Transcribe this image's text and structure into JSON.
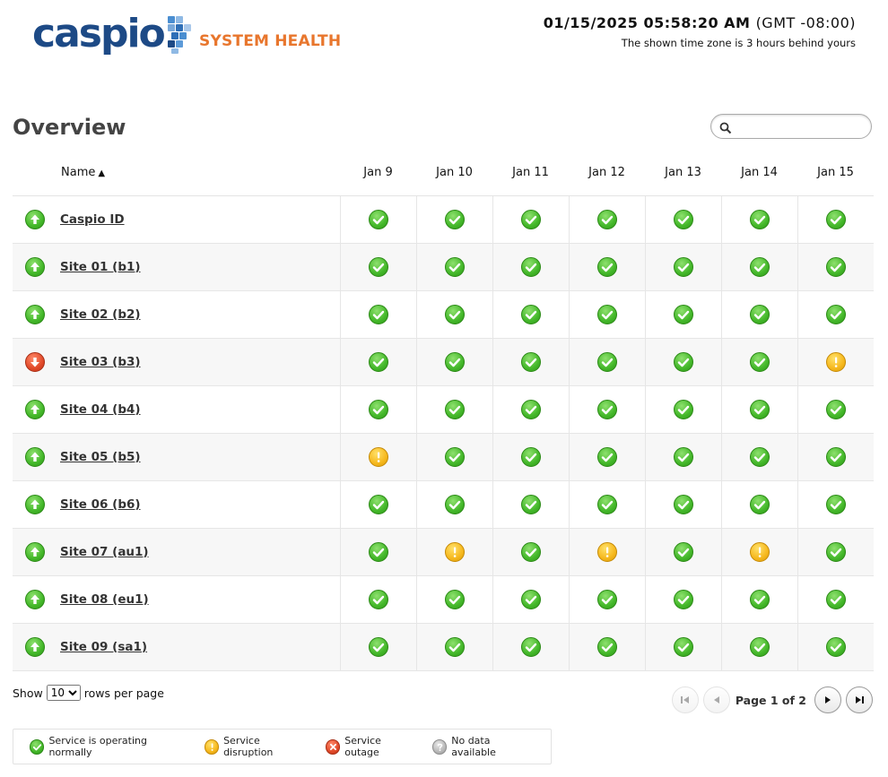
{
  "brand": {
    "wordmark": "caspio",
    "trademark": "™",
    "subtitle": "SYSTEM HEALTH"
  },
  "clock": {
    "time": "01/15/2025 05:58:20 AM",
    "tz": "(GMT -08:00)",
    "note": "The shown time zone is 3 hours behind yours"
  },
  "page": {
    "title": "Overview"
  },
  "search": {
    "placeholder": "",
    "value": "",
    "icon": "search-icon"
  },
  "table": {
    "name_header": "Name",
    "sort_indicator": "▲",
    "days": [
      "Jan 9",
      "Jan 10",
      "Jan 11",
      "Jan 12",
      "Jan 13",
      "Jan 14",
      "Jan 15"
    ],
    "rows": [
      {
        "name": "Caspio ID",
        "trend": "up",
        "statuses": [
          "ok",
          "ok",
          "ok",
          "ok",
          "ok",
          "ok",
          "ok"
        ]
      },
      {
        "name": "Site 01 (b1)",
        "trend": "up",
        "statuses": [
          "ok",
          "ok",
          "ok",
          "ok",
          "ok",
          "ok",
          "ok"
        ]
      },
      {
        "name": "Site 02 (b2)",
        "trend": "up",
        "statuses": [
          "ok",
          "ok",
          "ok",
          "ok",
          "ok",
          "ok",
          "ok"
        ]
      },
      {
        "name": "Site 03 (b3)",
        "trend": "down",
        "statuses": [
          "ok",
          "ok",
          "ok",
          "ok",
          "ok",
          "ok",
          "warn"
        ]
      },
      {
        "name": "Site 04 (b4)",
        "trend": "up",
        "statuses": [
          "ok",
          "ok",
          "ok",
          "ok",
          "ok",
          "ok",
          "ok"
        ]
      },
      {
        "name": "Site 05 (b5)",
        "trend": "up",
        "statuses": [
          "warn",
          "ok",
          "ok",
          "ok",
          "ok",
          "ok",
          "ok"
        ]
      },
      {
        "name": "Site 06 (b6)",
        "trend": "up",
        "statuses": [
          "ok",
          "ok",
          "ok",
          "ok",
          "ok",
          "ok",
          "ok"
        ]
      },
      {
        "name": "Site 07 (au1)",
        "trend": "up",
        "statuses": [
          "ok",
          "warn",
          "ok",
          "warn",
          "ok",
          "warn",
          "ok"
        ]
      },
      {
        "name": "Site 08 (eu1)",
        "trend": "up",
        "statuses": [
          "ok",
          "ok",
          "ok",
          "ok",
          "ok",
          "ok",
          "ok"
        ]
      },
      {
        "name": "Site 09 (sa1)",
        "trend": "up",
        "statuses": [
          "ok",
          "ok",
          "ok",
          "ok",
          "ok",
          "ok",
          "ok"
        ]
      }
    ]
  },
  "rows_per_page": {
    "prefix": "Show",
    "selected": "10",
    "suffix": "rows per page"
  },
  "pager": {
    "label": "Page 1 of 2"
  },
  "legend": {
    "ok": "Service is operating normally",
    "warn": "Service disruption",
    "err": "Service outage",
    "na": "No data available"
  },
  "colors": {
    "brand_blue": "#1d4a86",
    "brand_orange": "#e8762d",
    "ok_green": "#44b82a",
    "warn_yellow": "#f6b81d",
    "outage_red": "#e14a2a",
    "na_gray": "#b9b9b9"
  }
}
